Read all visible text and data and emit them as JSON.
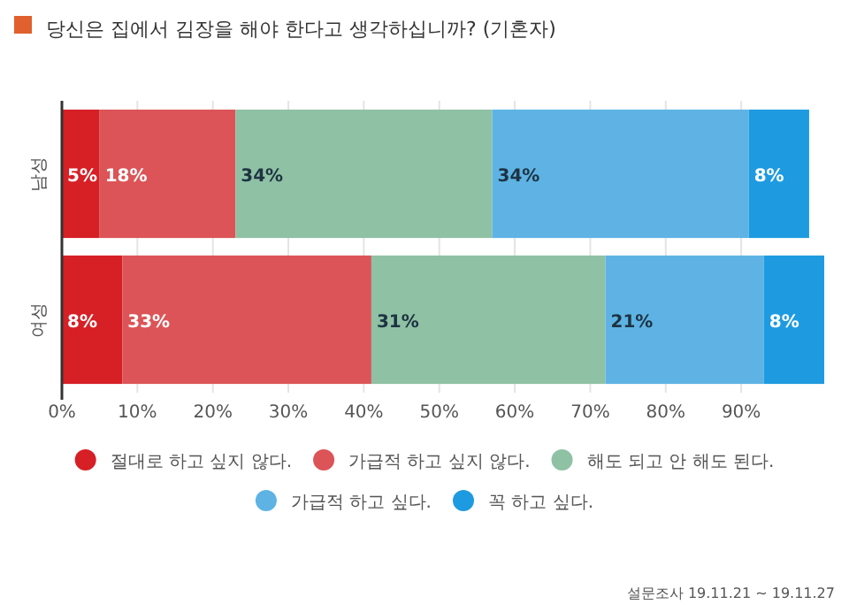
{
  "chart_data": {
    "type": "bar",
    "orientation": "horizontal",
    "stacked": true,
    "title": "당신은 집에서 김장을 해야 한다고 생각하십니까? (기혼자)",
    "categories": [
      "남성",
      "여성"
    ],
    "series": [
      {
        "name": "절대로 하고 싶지 않다.",
        "color": "#d71f26",
        "values": [
          5,
          8
        ],
        "value_labels": [
          "5%",
          "8%"
        ]
      },
      {
        "name": "가급적 하고 싶지 않다.",
        "color": "#dc5457",
        "values": [
          18,
          33
        ],
        "value_labels": [
          "18%",
          "33%"
        ]
      },
      {
        "name": "해도 되고 안 해도 된다.",
        "color": "#8fc1a4",
        "values": [
          34,
          31
        ],
        "value_labels": [
          "34%",
          "31%"
        ]
      },
      {
        "name": "가급적 하고 싶다.",
        "color": "#5eb3e4",
        "values": [
          34,
          21
        ],
        "value_labels": [
          "34%",
          "21%"
        ]
      },
      {
        "name": "꼭 하고 싶다.",
        "color": "#1e9be0",
        "values": [
          8,
          8
        ],
        "value_labels": [
          "8%",
          "8%"
        ]
      }
    ],
    "xlim": [
      0,
      101
    ],
    "xticks": [
      {
        "value": 0,
        "label": "0%"
      },
      {
        "value": 10,
        "label": "10%"
      },
      {
        "value": 20,
        "label": "20%"
      },
      {
        "value": 30,
        "label": "30%"
      },
      {
        "value": 40,
        "label": "40%"
      },
      {
        "value": 50,
        "label": "50%"
      },
      {
        "value": 60,
        "label": "60%"
      },
      {
        "value": 70,
        "label": "70%"
      },
      {
        "value": 80,
        "label": "80%"
      },
      {
        "value": 90,
        "label": "90%"
      }
    ],
    "grid": "x",
    "legend": "bottom",
    "marker": "circle",
    "annotations": [
      "설문조사 19.11.21 ~ 19.11.27"
    ]
  }
}
